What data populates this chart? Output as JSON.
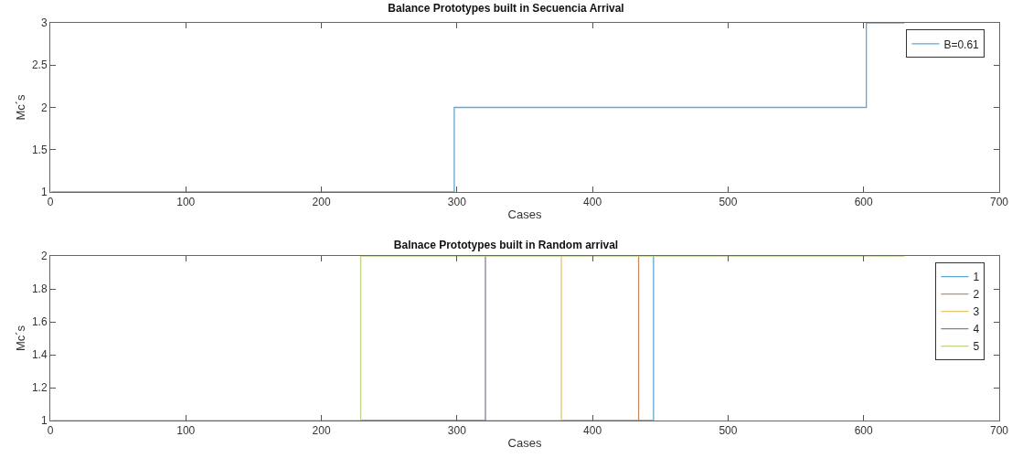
{
  "chart_data": [
    {
      "type": "step",
      "title": "Balance Prototypes built in Secuencia Arrival",
      "xlabel": "Cases",
      "ylabel": "Mc´s",
      "xlim": [
        0,
        700
      ],
      "xticks": [
        0,
        100,
        200,
        300,
        400,
        500,
        600,
        700
      ],
      "ylim": [
        1,
        3
      ],
      "yticks": [
        1,
        1.5,
        2,
        2.5,
        3
      ],
      "grid": false,
      "legend": "top right",
      "line_style": "solid",
      "marker": "none",
      "series": [
        {
          "name": "B=0.61",
          "color": "#5fa8d3",
          "x": [
            1,
            298,
            602,
            630
          ],
          "values": [
            1,
            2,
            3,
            3
          ]
        }
      ]
    },
    {
      "type": "step",
      "title": "Balnace Prototypes built in Random arrival",
      "xlabel": "Cases",
      "ylabel": "Mc´s",
      "xlim": [
        0,
        700
      ],
      "xticks": [
        0,
        100,
        200,
        300,
        400,
        500,
        600,
        700
      ],
      "ylim": [
        1,
        2
      ],
      "yticks": [
        1,
        1.2,
        1.4,
        1.6,
        1.8,
        2
      ],
      "grid": false,
      "legend": "top right",
      "line_style": "solid",
      "marker": "none",
      "series": [
        {
          "name": "1",
          "color": "#5fa8d3",
          "x": [
            434,
            445,
            445
          ],
          "values": [
            1,
            1,
            2
          ]
        },
        {
          "name": "2",
          "color": "#c98a62",
          "x": [
            377,
            434,
            434
          ],
          "values": [
            1,
            1,
            2
          ]
        },
        {
          "name": "3",
          "color": "#e3c66e",
          "x": [
            321,
            377,
            377
          ],
          "values": [
            1,
            1,
            2
          ]
        },
        {
          "name": "4",
          "color": "#8c7a9c",
          "x": [
            229,
            321,
            321
          ],
          "values": [
            1,
            1,
            2
          ]
        },
        {
          "name": "5",
          "color": "#bcd48a",
          "x": [
            1,
            229,
            630
          ],
          "values": [
            1,
            2,
            2
          ]
        }
      ]
    }
  ]
}
